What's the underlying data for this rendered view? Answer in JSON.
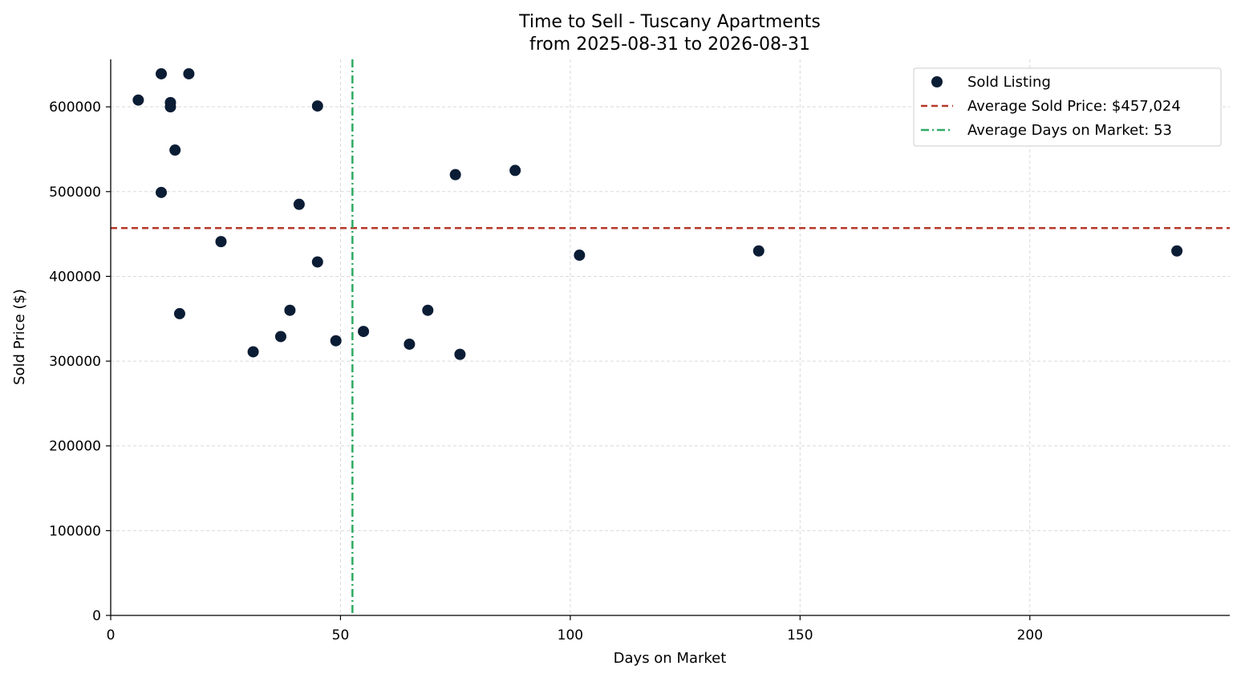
{
  "chart_data": {
    "type": "scatter",
    "title": "Time to Sell - Tuscany Apartments",
    "subtitle": "from 2025-08-31 to 2026-08-31",
    "xlabel": "Days on Market",
    "ylabel": "Sold Price ($)",
    "xlim": [
      0,
      243.5
    ],
    "ylim": [
      0,
      656000
    ],
    "xticks": [
      0,
      50,
      100,
      150,
      200
    ],
    "yticks": [
      0,
      100000,
      200000,
      300000,
      400000,
      500000,
      600000
    ],
    "grid": true,
    "legend_position": "top-right",
    "series": [
      {
        "name": "Sold Listing",
        "color": "#0b1d35",
        "points": [
          {
            "x": 6,
            "y": 608000
          },
          {
            "x": 11,
            "y": 639000
          },
          {
            "x": 11,
            "y": 499000
          },
          {
            "x": 13,
            "y": 605000
          },
          {
            "x": 13,
            "y": 600000
          },
          {
            "x": 14,
            "y": 549000
          },
          {
            "x": 15,
            "y": 356000
          },
          {
            "x": 17,
            "y": 639000
          },
          {
            "x": 24,
            "y": 441000
          },
          {
            "x": 31,
            "y": 311000
          },
          {
            "x": 37,
            "y": 329000
          },
          {
            "x": 39,
            "y": 360000
          },
          {
            "x": 41,
            "y": 485000
          },
          {
            "x": 45,
            "y": 601000
          },
          {
            "x": 45,
            "y": 417000
          },
          {
            "x": 49,
            "y": 324000
          },
          {
            "x": 55,
            "y": 335000
          },
          {
            "x": 65,
            "y": 320000
          },
          {
            "x": 69,
            "y": 360000
          },
          {
            "x": 75,
            "y": 520000
          },
          {
            "x": 76,
            "y": 308000
          },
          {
            "x": 88,
            "y": 525000
          },
          {
            "x": 102,
            "y": 425000
          },
          {
            "x": 141,
            "y": 430000
          },
          {
            "x": 232,
            "y": 430000
          }
        ]
      }
    ],
    "reference_lines": [
      {
        "orientation": "horizontal",
        "value": 457024,
        "label": "Average Sold Price: $457,024",
        "color": "#b5392a",
        "style": "dashed"
      },
      {
        "orientation": "vertical",
        "value": 52.6,
        "label": "Average Days on Market: 53",
        "color": "#2eaa63",
        "style": "dashdot"
      }
    ]
  }
}
